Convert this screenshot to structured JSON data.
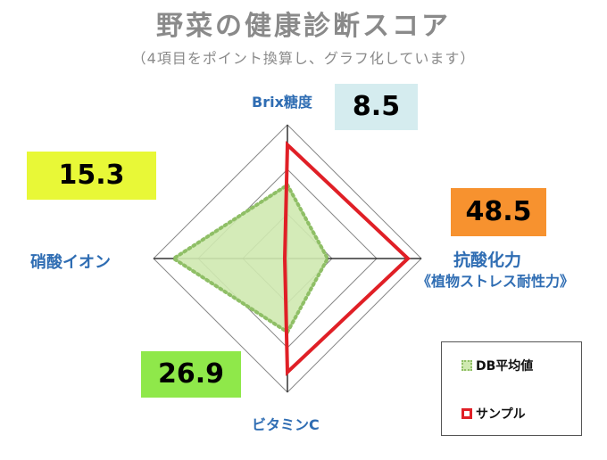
{
  "title": "野菜の健康診断スコア",
  "subtitle": "（4項目をポイント換算し、グラフ化しています）",
  "chart_data": {
    "type": "radar",
    "axes": [
      "Brix糖度",
      "抗酸化力",
      "ビタミンC",
      "硝酸イオン"
    ],
    "axis_sublabels": {
      "抗酸化力": "《植物ストレス耐性力》"
    },
    "series": [
      {
        "name": "DB平均値",
        "values": [
          0.55,
          0.3,
          0.55,
          0.85
        ]
      },
      {
        "name": "サンプル",
        "values": [
          0.85,
          0.9,
          0.85,
          0.02
        ]
      }
    ],
    "value_labels": {
      "Brix糖度": "8.5",
      "抗酸化力": "48.5",
      "ビタミンC": "26.9",
      "硝酸イオン": "15.3"
    },
    "colors": {
      "avg_fill": "#cfe9b0",
      "avg_stroke": "#8fbf66",
      "sample_stroke": "#e01f26",
      "box_brix": "#d5ecef",
      "box_antiox": "#f7922f",
      "box_vitc": "#8fe84a",
      "box_nitrate": "#e8f837",
      "grid": "#888888",
      "axis_label": "#2f6db3"
    }
  },
  "legend": {
    "avg_label": "DB平均値",
    "sample_label": "サンプル"
  }
}
